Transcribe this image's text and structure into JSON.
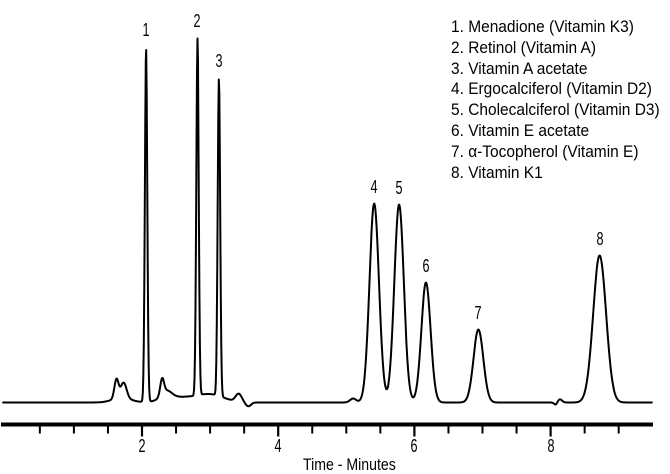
{
  "figure": {
    "background_color": "#ffffff",
    "ink_color": "#000000",
    "description": "HPLC chromatogram of eight fat-soluble vitamins, numbered peaks with legend"
  },
  "chart_data": {
    "type": "line",
    "subtype": "chromatogram",
    "title": "",
    "xlabel": "Time - Minutes",
    "ylabel": "",
    "x_axis": {
      "unit": "minutes",
      "min": 0,
      "max": 9.5,
      "major_ticks": [
        2,
        4,
        6,
        8
      ],
      "major_tick_labels": [
        "2",
        "4",
        "6",
        "8"
      ],
      "minor_ticks": [
        0.5,
        1.0,
        1.5,
        2.5,
        3.0,
        3.5,
        4.5,
        5.0,
        5.5,
        6.5,
        7.0,
        7.5,
        8.5,
        9.0
      ]
    },
    "y_axis": {
      "visible": false,
      "unit": "detector response (arbitrary units)"
    },
    "grid": false,
    "legend_position": "top-right",
    "trace_range_minutes": [
      -0.04,
      9.49
    ],
    "baseline_response_au": 0,
    "peaks": [
      {
        "number": "1",
        "name": "Menadione (Vitamin K3)",
        "retention_time_min": 2.06,
        "height_au": 355,
        "sigma_min": 0.018
      },
      {
        "number": "2",
        "name": "Retinol (Vitamin A)",
        "retention_time_min": 2.815,
        "height_au": 357,
        "sigma_min": 0.018
      },
      {
        "number": "3",
        "name": "Vitamin A acetate",
        "retention_time_min": 3.13,
        "height_au": 318,
        "sigma_min": 0.018
      },
      {
        "number": "4",
        "name": "Ergocalciferol (Vitamin D2)",
        "retention_time_min": 5.41,
        "height_au": 199,
        "sigma_min": 0.07
      },
      {
        "number": "5",
        "name": "Cholecalciferol (Vitamin D3)",
        "retention_time_min": 5.775,
        "height_au": 198,
        "sigma_min": 0.07
      },
      {
        "number": "6",
        "name": "Vitamin E acetate",
        "retention_time_min": 6.17,
        "height_au": 120,
        "sigma_min": 0.068
      },
      {
        "number": "7",
        "name": "α-Tocopherol (Vitamin E)",
        "retention_time_min": 6.94,
        "height_au": 73,
        "sigma_min": 0.072
      },
      {
        "number": "8",
        "name": "Vitamin K1",
        "retention_time_min": 8.72,
        "height_au": 147,
        "sigma_min": 0.095
      }
    ],
    "baseline_artifacts": [
      {
        "retention_time_min": 1.625,
        "height_au": 19,
        "sigma_min": 0.03,
        "note": "small early eluting bump (first hump)"
      },
      {
        "retention_time_min": 1.73,
        "height_au": 15,
        "sigma_min": 0.042,
        "note": "small early eluting bump (second hump)"
      },
      {
        "retention_time_min": 1.7,
        "height_au": 5,
        "sigma_min": 0.13,
        "note": "broad pedestal under early bumps"
      },
      {
        "retention_time_min": 2.295,
        "height_au": 16,
        "sigma_min": 0.028,
        "note": "sharp shoulder between peaks 1 and 2"
      },
      {
        "retention_time_min": 2.36,
        "height_au": 8,
        "sigma_min": 0.075,
        "note": "tail of shoulder"
      },
      {
        "retention_time_min": 2.52,
        "height_au": 5,
        "sigma_min": 0.22,
        "note": "elevated baseline under peaks 1-2"
      },
      {
        "retention_time_min": 3.0,
        "height_au": 8,
        "sigma_min": 0.2,
        "note": "elevated baseline under peaks 2-3"
      },
      {
        "retention_time_min": 3.42,
        "height_au": 8,
        "sigma_min": 0.045,
        "note": "small bump after peak 3"
      },
      {
        "retention_time_min": 3.56,
        "height_au": -4,
        "sigma_min": 0.04,
        "note": "dip below baseline after peak 3"
      },
      {
        "retention_time_min": 5.1,
        "height_au": 4,
        "sigma_min": 0.045,
        "note": "tiny bump before peak 4"
      },
      {
        "retention_time_min": 8.08,
        "height_au": -3,
        "sigma_min": 0.025,
        "note": "tiny dip before peak 8"
      },
      {
        "retention_time_min": 8.13,
        "height_au": 3.5,
        "sigma_min": 0.035,
        "note": "tiny blip before peak 8"
      }
    ]
  }
}
